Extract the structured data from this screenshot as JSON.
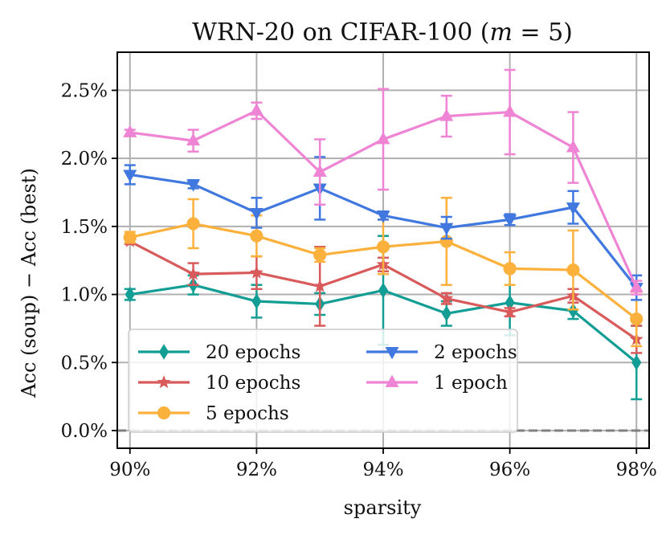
{
  "chart_data": {
    "type": "line",
    "title": "WRN-20 on CIFAR-100 (m = 5)",
    "title_parts": [
      "WRN-20 on CIFAR-100 (",
      "m",
      " = 5)"
    ],
    "xlabel": "sparsity",
    "ylabel": "Acc (soup) − Acc (best)",
    "x": [
      90,
      91,
      92,
      93,
      94,
      95,
      96,
      97,
      98
    ],
    "xlim": [
      89.8,
      98.2
    ],
    "ylim": [
      -0.13,
      2.78
    ],
    "xticks": [
      90,
      92,
      94,
      96,
      98
    ],
    "xtick_labels": [
      "90%",
      "92%",
      "94%",
      "96%",
      "98%"
    ],
    "yticks": [
      0.0,
      0.5,
      1.0,
      1.5,
      2.0,
      2.5
    ],
    "ytick_labels": [
      "0.0%",
      "0.5%",
      "1.0%",
      "1.5%",
      "2.0%",
      "2.5%"
    ],
    "grid": true,
    "baseline": 0.0,
    "legend": {
      "placement": "lower-left",
      "columns": 2
    },
    "series": [
      {
        "name": "20 epochs",
        "color": "#129e94",
        "marker": "diamond",
        "values": [
          1.0,
          1.07,
          0.95,
          0.93,
          1.03,
          0.86,
          0.94,
          0.88,
          0.5
        ],
        "errors": [
          0.04,
          0.07,
          0.12,
          0.08,
          0.4,
          0.09,
          0.24,
          0.06,
          0.27
        ]
      },
      {
        "name": "10 epochs",
        "color": "#d95a5a",
        "marker": "star",
        "values": [
          1.39,
          1.15,
          1.16,
          1.06,
          1.22,
          0.97,
          0.87,
          0.99,
          0.67
        ],
        "errors": [
          0.02,
          0.08,
          0.12,
          0.29,
          0.05,
          0.04,
          0.03,
          0.05,
          0.1
        ]
      },
      {
        "name": "5 epochs",
        "color": "#fbb13c",
        "marker": "circle",
        "values": [
          1.42,
          1.52,
          1.43,
          1.29,
          1.35,
          1.39,
          1.19,
          1.18,
          0.82
        ],
        "errors": [
          0.04,
          0.18,
          0.15,
          0.05,
          0.2,
          0.32,
          0.12,
          0.29,
          0.2
        ]
      },
      {
        "name": "2 epochs",
        "color": "#4078e0",
        "marker": "triangle-down",
        "values": [
          1.88,
          1.81,
          1.6,
          1.78,
          1.58,
          1.49,
          1.55,
          1.64,
          1.05
        ],
        "errors": [
          0.07,
          0.03,
          0.11,
          0.23,
          0.03,
          0.08,
          0.04,
          0.12,
          0.09
        ]
      },
      {
        "name": "1 epoch",
        "color": "#ee84d3",
        "marker": "triangle-up",
        "values": [
          2.19,
          2.13,
          2.35,
          1.9,
          2.14,
          2.31,
          2.34,
          2.08,
          1.05
        ],
        "errors": [
          0.02,
          0.08,
          0.06,
          0.24,
          0.37,
          0.15,
          0.31,
          0.26,
          0.05
        ]
      }
    ]
  }
}
